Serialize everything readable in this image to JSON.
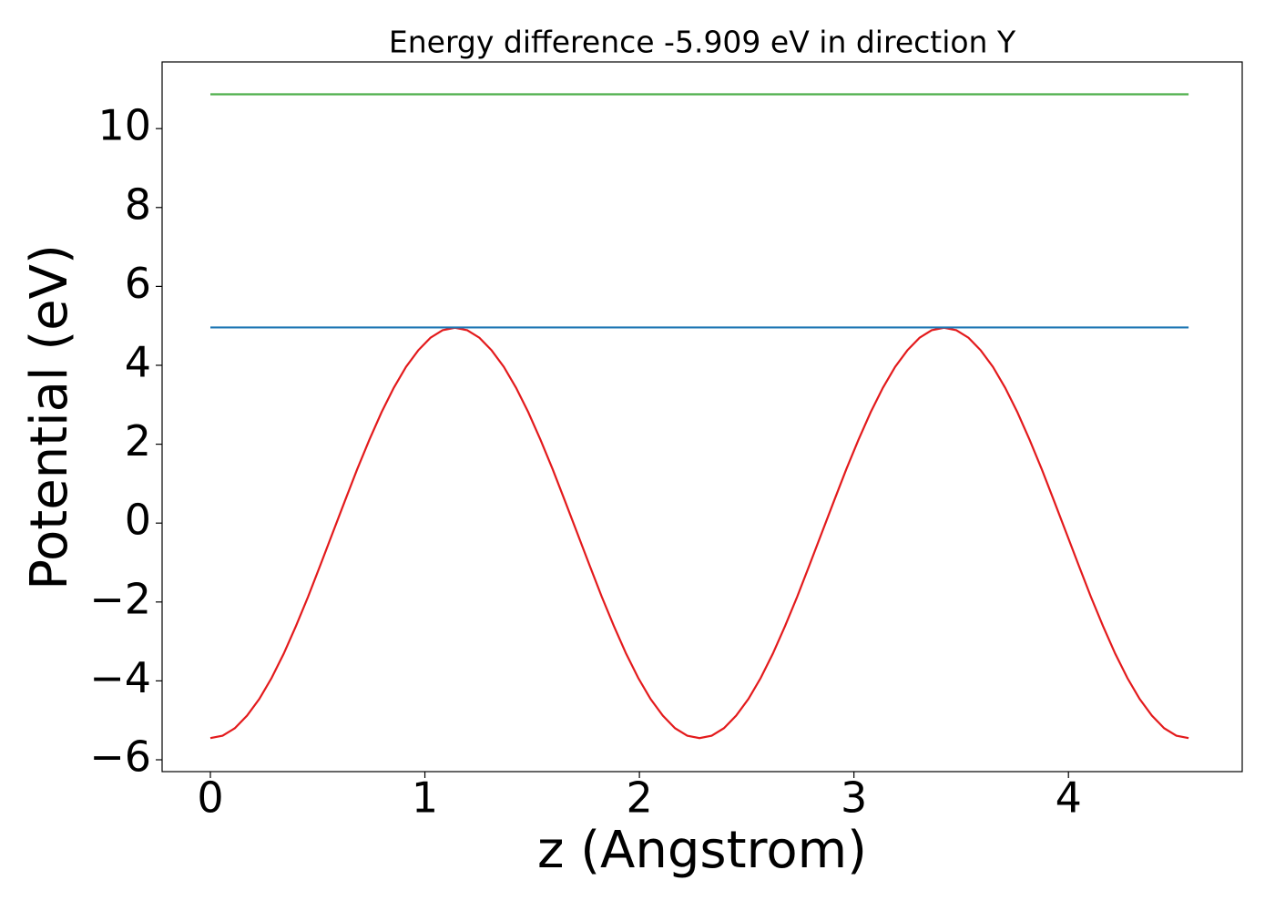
{
  "chart_data": {
    "type": "line",
    "title": "Energy difference -5.909 eV in direction Y",
    "xlabel": "z (Angstrom)",
    "ylabel": "Potential (eV)",
    "xlim": [
      -0.225,
      4.81
    ],
    "ylim": [
      -6.3,
      11.69
    ],
    "xticks": [
      0,
      1,
      2,
      3,
      4
    ],
    "yticks": [
      {
        "value": -6,
        "label": "−6"
      },
      {
        "value": -4,
        "label": "−4"
      },
      {
        "value": -2,
        "label": "−2"
      },
      0,
      2,
      4,
      6,
      8,
      10
    ],
    "series": [
      {
        "color": "#e31a1c",
        "x": [
          0,
          0.057,
          0.114,
          0.171,
          0.228,
          0.285,
          0.342,
          0.399,
          0.456,
          0.513,
          0.57,
          0.627,
          0.684,
          0.741,
          0.798,
          0.855,
          0.912,
          0.969,
          1.026,
          1.083,
          1.14,
          1.197,
          1.254,
          1.311,
          1.368,
          1.425,
          1.482,
          1.539,
          1.596,
          1.653,
          1.71,
          1.767,
          1.824,
          1.881,
          1.938,
          1.995,
          2.052,
          2.109,
          2.166,
          2.223,
          2.28,
          2.337,
          2.394,
          2.451,
          2.508,
          2.565,
          2.622,
          2.679,
          2.736,
          2.793,
          2.85,
          2.907,
          2.964,
          3.021,
          3.078,
          3.135,
          3.192,
          3.249,
          3.306,
          3.363,
          3.42,
          3.477,
          3.534,
          3.591,
          3.648,
          3.705,
          3.762,
          3.819,
          3.876,
          3.933,
          3.99,
          4.047,
          4.104,
          4.161,
          4.218,
          4.275,
          4.332,
          4.389,
          4.446,
          4.503,
          4.56
        ],
        "values": [
          -5.45,
          -5.39,
          -5.2,
          -4.88,
          -4.46,
          -3.93,
          -3.31,
          -2.61,
          -1.86,
          -1.06,
          -0.25,
          0.56,
          1.36,
          2.11,
          2.81,
          3.43,
          3.96,
          4.38,
          4.7,
          4.89,
          4.95,
          4.89,
          4.7,
          4.38,
          3.96,
          3.43,
          2.81,
          2.11,
          1.36,
          0.56,
          -0.25,
          -1.06,
          -1.86,
          -2.61,
          -3.31,
          -3.93,
          -4.46,
          -4.88,
          -5.2,
          -5.39,
          -5.45,
          -5.39,
          -5.2,
          -4.88,
          -4.46,
          -3.93,
          -3.31,
          -2.61,
          -1.86,
          -1.06,
          -0.25,
          0.56,
          1.36,
          2.11,
          2.81,
          3.43,
          3.96,
          4.38,
          4.7,
          4.89,
          4.95,
          4.89,
          4.7,
          4.38,
          3.96,
          3.43,
          2.81,
          2.11,
          1.36,
          0.56,
          -0.25,
          -1.06,
          -1.86,
          -2.61,
          -3.31,
          -3.93,
          -4.46,
          -4.88,
          -5.2,
          -5.39,
          -5.45
        ]
      },
      {
        "color": "#1f77b4",
        "x": [
          0,
          4.56
        ],
        "values": [
          4.96,
          4.96
        ]
      },
      {
        "color": "#4daf4a",
        "x": [
          0,
          4.56
        ],
        "values": [
          10.87,
          10.87
        ]
      }
    ]
  }
}
